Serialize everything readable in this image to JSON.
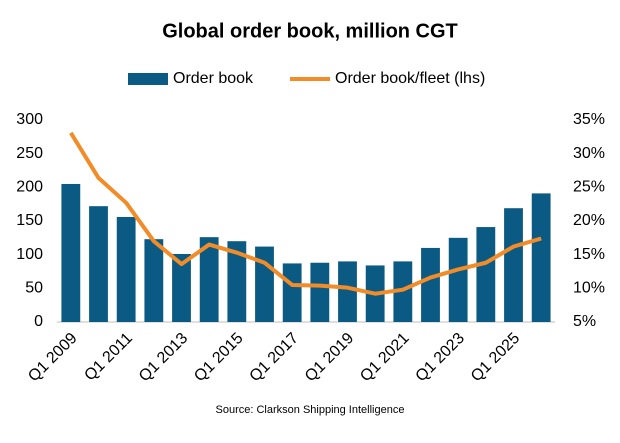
{
  "chart_data": {
    "type": "combo",
    "title": "Global order book, million CGT",
    "source": "Source: Clarkson Shipping Intelligence",
    "categories": [
      "Q1 2009",
      null,
      "Q1 2011",
      null,
      "Q1 2013",
      null,
      "Q1 2015",
      null,
      "Q1 2017",
      null,
      "Q1 2019",
      null,
      "Q1 2021",
      null,
      "Q1 2023",
      null,
      "Q1 2025",
      null
    ],
    "series": [
      {
        "name": "Order book",
        "type": "bar",
        "color": "#0b5a84",
        "values": [
          205,
          172,
          156,
          123,
          101,
          126,
          120,
          112,
          87,
          88,
          90,
          84,
          90,
          110,
          125,
          141,
          169,
          191
        ]
      },
      {
        "name": "Order book/fleet (lhs)",
        "type": "line",
        "axis": "y2",
        "color": "#f28c28",
        "values": [
          33.1,
          26.4,
          22.7,
          17.0,
          13.6,
          16.5,
          15.3,
          13.8,
          10.5,
          10.4,
          10.1,
          9.2,
          9.8,
          11.6,
          12.8,
          13.8,
          16.2,
          17.4
        ]
      }
    ],
    "ylim": [
      0,
      300
    ],
    "yticks": [
      0,
      50,
      100,
      150,
      200,
      250,
      300
    ],
    "y2lim": [
      5,
      35
    ],
    "y2ticks": [
      {
        "value": 5,
        "label": "5%"
      },
      {
        "value": 10,
        "label": "10%"
      },
      {
        "value": 15,
        "label": "15%"
      },
      {
        "value": 20,
        "label": "20%"
      },
      {
        "value": 25,
        "label": "25%"
      },
      {
        "value": 30,
        "label": "30%"
      },
      {
        "value": 35,
        "label": "35%"
      }
    ]
  }
}
